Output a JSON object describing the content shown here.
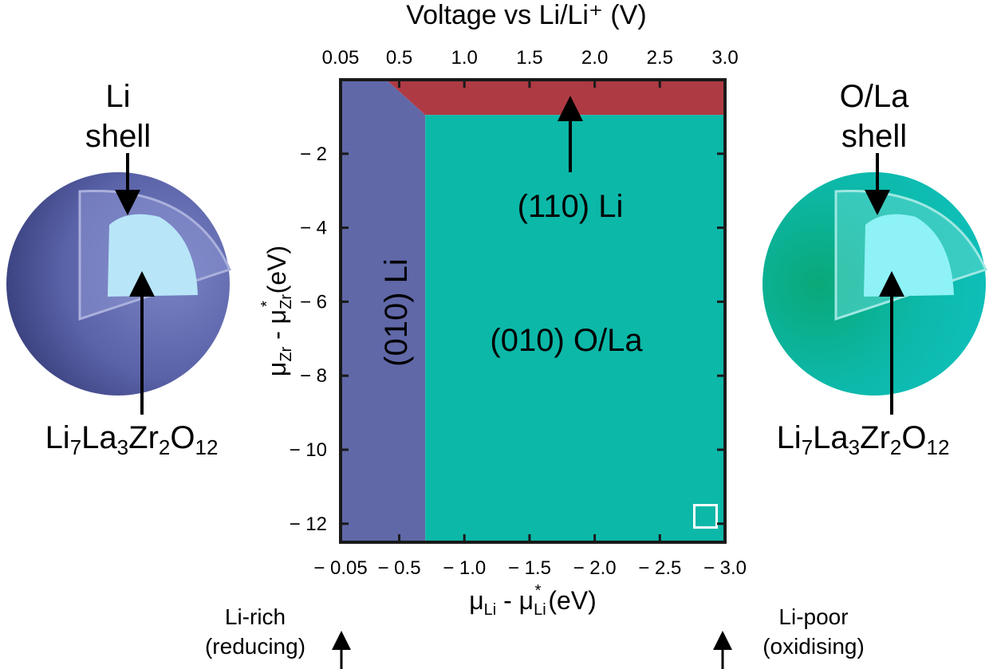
{
  "chart_data": {
    "type": "heatmap",
    "title": "",
    "top_axis": {
      "label": "Voltage vs Li/Li⁺ (V)",
      "ticks": [
        "0.05",
        "0.5",
        "1.0",
        "1.5",
        "2.0",
        "2.5",
        "3.0"
      ]
    },
    "x_axis": {
      "label_parts": [
        "μ",
        "Li",
        " - μ",
        "Li",
        "*",
        " (eV)"
      ],
      "ticks": [
        "− 0.05",
        "− 0.5",
        "− 1.0",
        "− 1.5",
        "− 2.0",
        "− 2.5",
        "− 3.0"
      ],
      "tick_values": [
        -0.05,
        -0.5,
        -1.0,
        -1.5,
        -2.0,
        -2.5,
        -3.0
      ],
      "range": [
        -0.05,
        -3.0
      ]
    },
    "y_axis": {
      "label_parts": [
        "μ",
        "Zr",
        " - μ",
        "Zr",
        "*",
        " (eV)"
      ],
      "ticks": [
        "− 2",
        "− 4",
        "− 6",
        "− 8",
        "− 10",
        "− 12"
      ],
      "tick_values": [
        -2,
        -4,
        -6,
        -8,
        -10,
        -12
      ],
      "range": [
        0,
        -12.5
      ]
    },
    "regions": [
      {
        "label": "(010) Li",
        "color": "#6068a8",
        "polygon": [
          [
            -0.05,
            0
          ],
          [
            -0.4,
            0
          ],
          [
            -0.7,
            -0.95
          ],
          [
            -0.7,
            -12.5
          ],
          [
            -0.05,
            -12.5
          ]
        ]
      },
      {
        "label": "(110) Li",
        "color": "#ae3a44",
        "polygon": [
          [
            -0.4,
            0
          ],
          [
            -3.0,
            0
          ],
          [
            -3.0,
            -0.95
          ],
          [
            -0.7,
            -0.95
          ]
        ]
      },
      {
        "label": "(010) O/La",
        "color": "#0cb8a8",
        "polygon": [
          [
            -0.7,
            -0.95
          ],
          [
            -3.0,
            -0.95
          ],
          [
            -3.0,
            -12.5
          ],
          [
            -0.7,
            -12.5
          ]
        ]
      }
    ],
    "marker": {
      "shape": "open-square",
      "x": -2.85,
      "y": -11.8,
      "color": "#ffffff"
    }
  },
  "annotations": {
    "li_rich": [
      "Li-rich",
      "(reducing)"
    ],
    "li_poor": [
      "Li-poor",
      "(oxidising)"
    ],
    "left_sphere": {
      "shell_label": [
        "Li",
        "shell"
      ],
      "core_label": [
        "Li",
        "7",
        "La",
        "3",
        "Zr",
        "2",
        "O",
        "12"
      ],
      "shell_color": "#6068a8",
      "core_color": "#b8e6f8"
    },
    "right_sphere": {
      "shell_label": [
        "O/La",
        "shell"
      ],
      "core_label": [
        "Li",
        "7",
        "La",
        "3",
        "Zr",
        "2",
        "O",
        "12"
      ],
      "shell_color": "#0cb8a8",
      "core_color": "#8ef2f6"
    }
  }
}
